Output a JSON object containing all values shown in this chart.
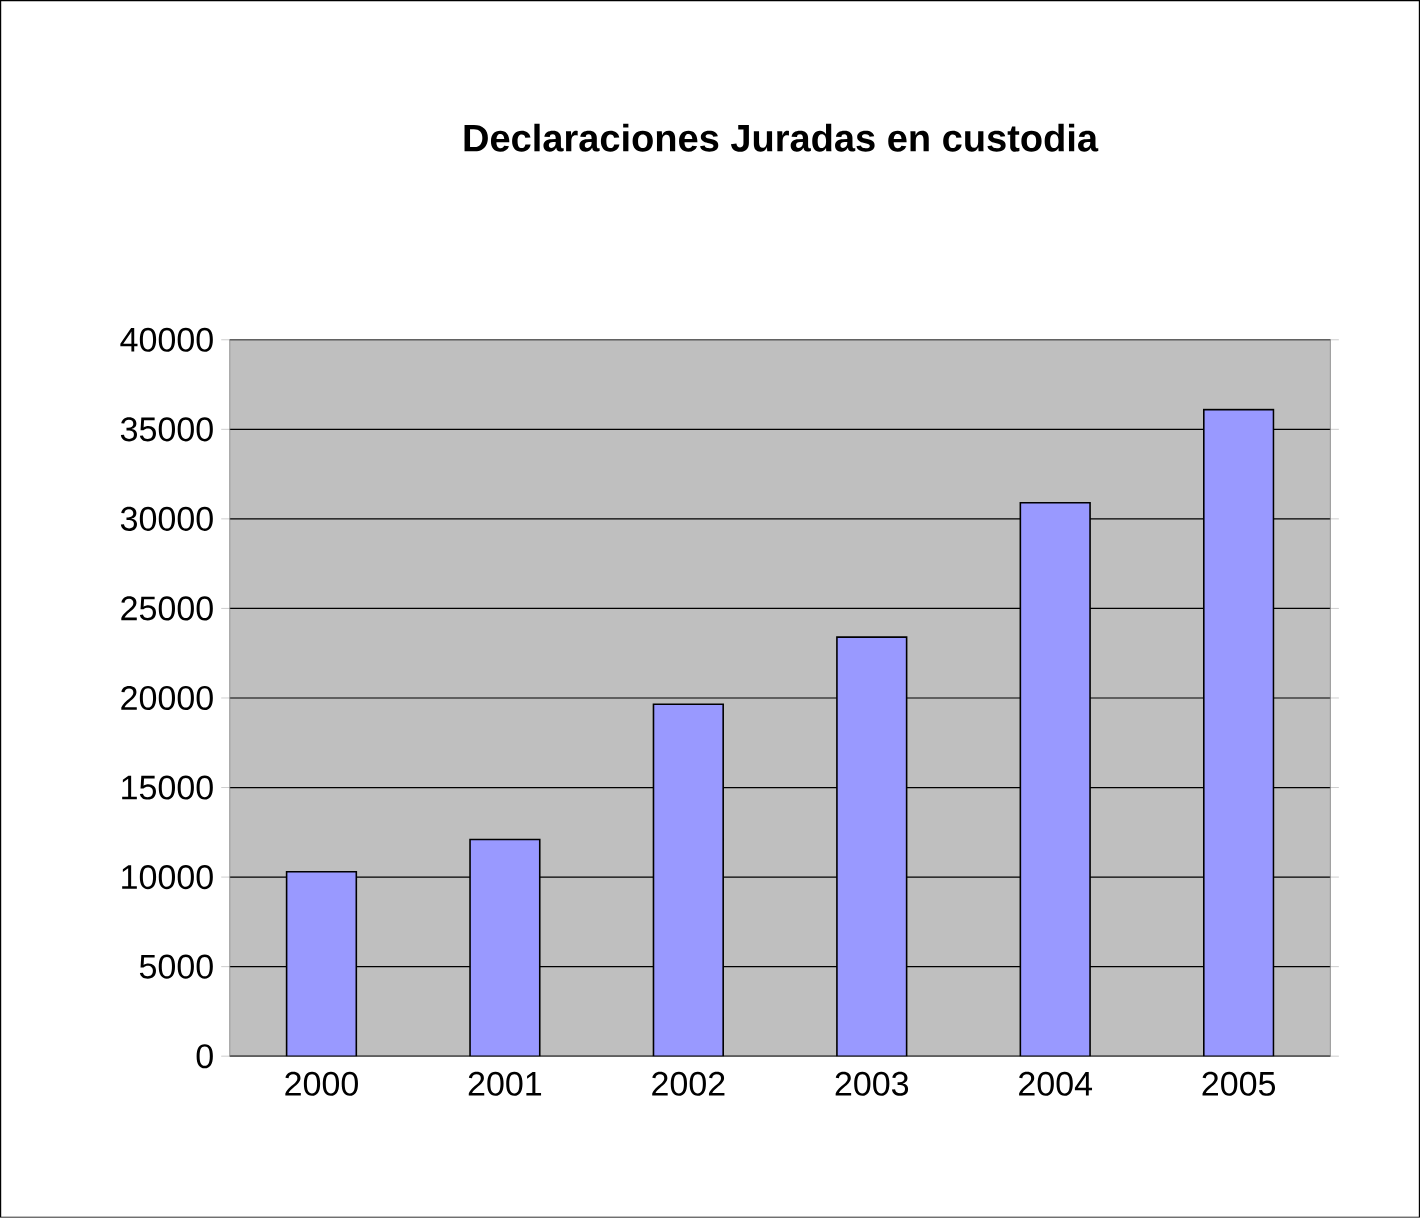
{
  "chart_data": {
    "type": "bar",
    "title": "Declaraciones Juradas en custodia",
    "categories": [
      "2000",
      "2001",
      "2002",
      "2003",
      "2004",
      "2005"
    ],
    "values": [
      10300,
      12100,
      19650,
      23400,
      30900,
      36100
    ],
    "color": "#9999ff",
    "ylim": [
      0,
      40000
    ],
    "yticks": [
      0,
      5000,
      10000,
      15000,
      20000,
      25000,
      30000,
      35000,
      40000
    ],
    "grid": "y"
  }
}
